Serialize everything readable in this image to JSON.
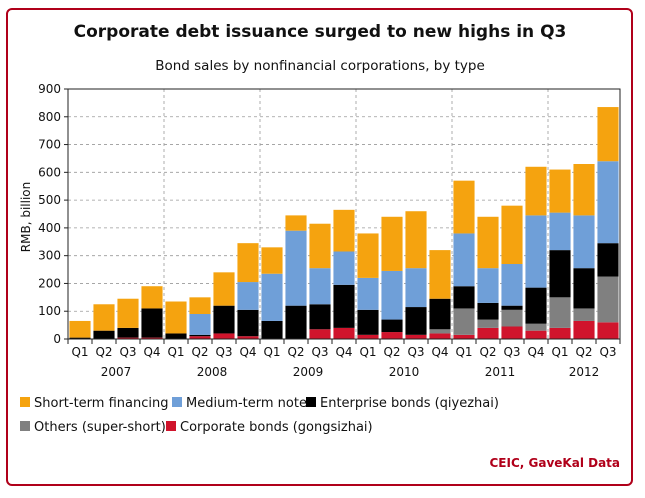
{
  "chart_data": {
    "type": "bar",
    "stacked": true,
    "title": "Corporate debt issuance surged to new highs in Q3",
    "subtitle": "Bond sales by nonfinancial corporations, by type",
    "ylabel": "RMB, billion",
    "ylim": [
      0,
      900
    ],
    "yticks": [
      "0",
      "100",
      "200",
      "300",
      "400",
      "500",
      "600",
      "700",
      "800",
      "900"
    ],
    "grid": true,
    "legend_position": "bottom",
    "categories": [
      "Q1",
      "Q2",
      "Q3",
      "Q4",
      "Q1",
      "Q2",
      "Q3",
      "Q4",
      "Q1",
      "Q2",
      "Q3",
      "Q4",
      "Q1",
      "Q2",
      "Q3",
      "Q4",
      "Q1",
      "Q2",
      "Q3",
      "Q4",
      "Q1",
      "Q2",
      "Q3"
    ],
    "years": [
      "2007",
      "2008",
      "2009",
      "2010",
      "2011",
      "2012"
    ],
    "year_spans": [
      [
        0,
        3
      ],
      [
        4,
        7
      ],
      [
        8,
        11
      ],
      [
        12,
        15
      ],
      [
        16,
        19
      ],
      [
        20,
        22
      ]
    ],
    "series": [
      {
        "name": "Corporate bonds (gongsizhai)",
        "color": "#d0142c",
        "values": [
          0,
          0,
          5,
          5,
          0,
          10,
          20,
          10,
          0,
          0,
          35,
          40,
          15,
          25,
          15,
          20,
          15,
          40,
          45,
          30,
          40,
          65,
          60
        ]
      },
      {
        "name": "Others (super-short)",
        "color": "#808080",
        "values": [
          0,
          0,
          0,
          0,
          0,
          0,
          0,
          0,
          0,
          0,
          0,
          0,
          0,
          0,
          0,
          15,
          95,
          30,
          60,
          25,
          110,
          45,
          165
        ]
      },
      {
        "name": "Enterprise bonds (qiyezhai)",
        "color": "#000000",
        "values": [
          5,
          30,
          35,
          105,
          20,
          5,
          100,
          95,
          65,
          120,
          90,
          155,
          90,
          45,
          100,
          110,
          80,
          60,
          15,
          130,
          170,
          145,
          120
        ]
      },
      {
        "name": "Medium-term notes",
        "color": "#6f9fd8",
        "values": [
          0,
          0,
          0,
          0,
          0,
          75,
          0,
          100,
          170,
          270,
          130,
          120,
          115,
          175,
          140,
          0,
          190,
          125,
          150,
          260,
          135,
          190,
          295
        ]
      },
      {
        "name": "Short-term financing",
        "color": "#f5a30f",
        "values": [
          60,
          95,
          105,
          80,
          115,
          60,
          120,
          140,
          95,
          55,
          160,
          150,
          160,
          195,
          205,
          175,
          190,
          185,
          210,
          175,
          155,
          185,
          195
        ]
      }
    ],
    "legend_rows": [
      [
        "Short-term financing",
        "Medium-term notes",
        "Enterprise bonds (qiyezhai)"
      ],
      [
        "Others (super-short)",
        "Corporate bonds (gongsizhai)"
      ]
    ],
    "source": "CEIC, GaveKal Data"
  }
}
